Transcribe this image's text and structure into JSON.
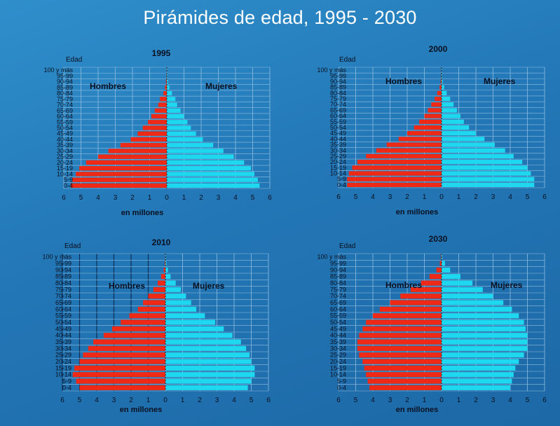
{
  "title": "Pirámides de edad, 1995 - 2030",
  "colors": {
    "male": "#ee2a16",
    "female": "#1ed8ef",
    "grid": "#8fbde0",
    "text": "#0a1020",
    "label": "#ffffff"
  },
  "shared": {
    "age_axis_label": "Edad",
    "male_label": "Hombres",
    "female_label": "Mujeres",
    "x_axis_label": "en millones",
    "age_groups": [
      "0-4",
      "5-9",
      "10-14",
      "15-19",
      "20-24",
      "25-29",
      "30-34",
      "35-39",
      "40-44",
      "45-49",
      "50-54",
      "55-59",
      "60-64",
      "65-69",
      "70-74",
      "75-79",
      "80-84",
      "85-89",
      "90-94",
      "95-99",
      "100 y más"
    ],
    "x_ticks": [
      "6",
      "5",
      "4",
      "3",
      "2",
      "1",
      "0",
      "1",
      "2",
      "3",
      "4",
      "5",
      "6"
    ]
  },
  "chart_data": [
    {
      "type": "bar",
      "orientation": "horizontal-pyramid",
      "title": "1995",
      "xlabel": "en millones",
      "ylabel": "Edad",
      "xlim": [
        -6,
        6
      ],
      "categories": [
        "0-4",
        "5-9",
        "10-14",
        "15-19",
        "20-24",
        "25-29",
        "30-34",
        "35-39",
        "40-44",
        "45-49",
        "50-54",
        "55-59",
        "60-64",
        "65-69",
        "70-74",
        "75-79",
        "80-84",
        "85-89",
        "90-94",
        "95-99",
        "100 y más"
      ],
      "series": [
        {
          "name": "Hombres",
          "values": [
            5.6,
            5.5,
            5.3,
            5.1,
            4.7,
            4.0,
            3.4,
            2.7,
            2.1,
            1.7,
            1.4,
            1.1,
            0.9,
            0.7,
            0.5,
            0.4,
            0.2,
            0.1,
            0.05,
            0.02,
            0.01
          ]
        },
        {
          "name": "Mujeres",
          "values": [
            5.4,
            5.3,
            5.1,
            4.9,
            4.5,
            3.9,
            3.3,
            2.7,
            2.1,
            1.7,
            1.4,
            1.2,
            1.0,
            0.8,
            0.6,
            0.5,
            0.3,
            0.15,
            0.07,
            0.03,
            0.01
          ]
        }
      ]
    },
    {
      "type": "bar",
      "orientation": "horizontal-pyramid",
      "title": "2000",
      "xlabel": "en millones",
      "ylabel": "Edad",
      "xlim": [
        -6,
        6
      ],
      "categories": [
        "0-4",
        "5-9",
        "10-14",
        "15-19",
        "20-24",
        "25-29",
        "30-34",
        "35-39",
        "40-44",
        "45-49",
        "50-54",
        "55-59",
        "60-64",
        "65-69",
        "70-74",
        "75-79",
        "80-84",
        "85-89",
        "90-94",
        "95-99",
        "100 y más"
      ],
      "series": [
        {
          "name": "Hombres",
          "values": [
            5.5,
            5.5,
            5.4,
            5.2,
            4.9,
            4.4,
            3.8,
            3.2,
            2.5,
            2.0,
            1.6,
            1.3,
            1.0,
            0.8,
            0.6,
            0.4,
            0.25,
            0.12,
            0.05,
            0.02,
            0.01
          ]
        },
        {
          "name": "Mujeres",
          "values": [
            5.4,
            5.4,
            5.2,
            5.0,
            4.7,
            4.2,
            3.7,
            3.1,
            2.5,
            2.0,
            1.6,
            1.3,
            1.1,
            0.9,
            0.7,
            0.5,
            0.3,
            0.15,
            0.07,
            0.03,
            0.01
          ]
        }
      ]
    },
    {
      "type": "bar",
      "orientation": "horizontal-pyramid",
      "title": "2010",
      "xlabel": "en millones",
      "ylabel": "Edad",
      "xlim": [
        -6,
        6
      ],
      "categories": [
        "0-4",
        "5-9",
        "10-14",
        "15-19",
        "20-24",
        "25-29",
        "30-34",
        "35-39",
        "40-44",
        "45-49",
        "50-54",
        "55-59",
        "60-64",
        "65-69",
        "70-74",
        "75-79",
        "80-84",
        "85-89",
        "90-94",
        "95-99",
        "100 y más"
      ],
      "series": [
        {
          "name": "Hombres",
          "values": [
            5.0,
            5.2,
            5.4,
            5.3,
            5.0,
            4.8,
            4.5,
            4.2,
            3.6,
            3.1,
            2.6,
            2.1,
            1.6,
            1.3,
            1.0,
            0.7,
            0.45,
            0.25,
            0.1,
            0.04,
            0.01
          ]
        },
        {
          "name": "Mujeres",
          "values": [
            4.8,
            5.0,
            5.2,
            5.2,
            5.0,
            4.9,
            4.7,
            4.4,
            3.9,
            3.4,
            2.9,
            2.3,
            1.8,
            1.5,
            1.2,
            0.9,
            0.6,
            0.3,
            0.15,
            0.06,
            0.02
          ]
        }
      ]
    },
    {
      "type": "bar",
      "orientation": "horizontal-pyramid",
      "title": "2030",
      "xlabel": "en millones",
      "ylabel": "Edad",
      "xlim": [
        -6,
        6
      ],
      "categories": [
        "0-4",
        "5-9",
        "10-14",
        "15-19",
        "20-24",
        "25-29",
        "30-34",
        "35-39",
        "40-44",
        "45-49",
        "50-54",
        "55-59",
        "60-64",
        "65-69",
        "70-74",
        "75-79",
        "80-84",
        "85-89",
        "90-94",
        "95-99",
        "100 y más"
      ],
      "series": [
        {
          "name": "Hombres",
          "values": [
            4.2,
            4.3,
            4.4,
            4.5,
            4.6,
            4.8,
            4.9,
            4.9,
            4.8,
            4.6,
            4.4,
            4.0,
            3.6,
            3.0,
            2.4,
            1.8,
            1.2,
            0.7,
            0.3,
            0.1,
            0.03
          ]
        },
        {
          "name": "Mujeres",
          "values": [
            4.0,
            4.1,
            4.2,
            4.3,
            4.5,
            4.8,
            5.0,
            5.0,
            5.0,
            4.9,
            4.8,
            4.5,
            4.1,
            3.6,
            3.0,
            2.4,
            1.8,
            1.1,
            0.5,
            0.2,
            0.05
          ]
        }
      ]
    }
  ]
}
